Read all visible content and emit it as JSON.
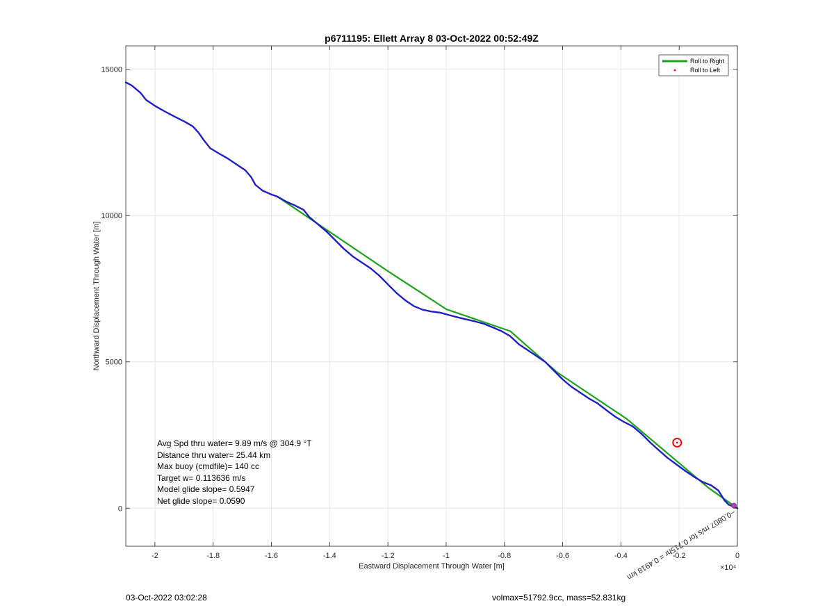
{
  "chart_data": {
    "type": "line",
    "title": "p6711195: Ellett Array 8 03-Oct-2022 00:52:49Z",
    "xlabel": "Eastward Displacement Through Water [m]",
    "ylabel": "Northward Displacement Through Water [m]",
    "x_exponent_label": "×10⁴",
    "xlim": [
      -21000,
      0
    ],
    "ylim": [
      -1300,
      15800
    ],
    "xticks": [
      -20000,
      -18000,
      -16000,
      -14000,
      -12000,
      -10000,
      -8000,
      -6000,
      -4000,
      -2000,
      0
    ],
    "xtick_labels": [
      "-2",
      "-1.8",
      "-1.6",
      "-1.4",
      "-1.2",
      "-1",
      "-0.8",
      "-0.6",
      "-0.4",
      "-0.2",
      "0"
    ],
    "yticks": [
      0,
      5000,
      10000,
      15000
    ],
    "ytick_labels": [
      "0",
      "5000",
      "10000",
      "15000"
    ],
    "grid": true,
    "legend_position": "top-right",
    "series": [
      {
        "name": "Roll to Right",
        "color": "#1aa31a",
        "style": "line",
        "points": [
          [
            -15800,
            10650
          ],
          [
            -12000,
            8100
          ],
          [
            -10000,
            6800
          ],
          [
            -7800,
            6050
          ],
          [
            -6200,
            4650
          ],
          [
            -3800,
            3050
          ],
          [
            -1000,
            700
          ],
          [
            0,
            0
          ]
        ]
      },
      {
        "name": "Roll to Left",
        "color": "#ff0000",
        "style": "point",
        "points": [
          [
            -2070,
            2240
          ]
        ]
      },
      {
        "color": "#1f1fc8",
        "style": "line",
        "points": [
          [
            -21000,
            14550
          ],
          [
            -20800,
            14450
          ],
          [
            -20500,
            14200
          ],
          [
            -20300,
            13950
          ],
          [
            -20000,
            13750
          ],
          [
            -19700,
            13580
          ],
          [
            -19300,
            13370
          ],
          [
            -19000,
            13220
          ],
          [
            -18700,
            13050
          ],
          [
            -18500,
            12830
          ],
          [
            -18300,
            12550
          ],
          [
            -18100,
            12300
          ],
          [
            -17800,
            12120
          ],
          [
            -17500,
            11950
          ],
          [
            -17200,
            11750
          ],
          [
            -16900,
            11550
          ],
          [
            -16700,
            11320
          ],
          [
            -16550,
            11050
          ],
          [
            -16300,
            10850
          ],
          [
            -16000,
            10720
          ],
          [
            -15800,
            10650
          ],
          [
            -15500,
            10480
          ],
          [
            -15200,
            10350
          ],
          [
            -14900,
            10200
          ],
          [
            -14700,
            9950
          ],
          [
            -14400,
            9700
          ],
          [
            -14100,
            9450
          ],
          [
            -13800,
            9150
          ],
          [
            -13500,
            8850
          ],
          [
            -13200,
            8600
          ],
          [
            -12900,
            8400
          ],
          [
            -12600,
            8200
          ],
          [
            -12300,
            7950
          ],
          [
            -12000,
            7650
          ],
          [
            -11700,
            7350
          ],
          [
            -11400,
            7100
          ],
          [
            -11100,
            6900
          ],
          [
            -10800,
            6780
          ],
          [
            -10500,
            6720
          ],
          [
            -10200,
            6680
          ],
          [
            -9900,
            6600
          ],
          [
            -9600,
            6520
          ],
          [
            -9300,
            6450
          ],
          [
            -9000,
            6380
          ],
          [
            -8700,
            6300
          ],
          [
            -8400,
            6180
          ],
          [
            -8100,
            6050
          ],
          [
            -7800,
            5880
          ],
          [
            -7500,
            5600
          ],
          [
            -7200,
            5400
          ],
          [
            -6900,
            5200
          ],
          [
            -6600,
            5000
          ],
          [
            -6300,
            4700
          ],
          [
            -6000,
            4400
          ],
          [
            -5700,
            4150
          ],
          [
            -5400,
            3950
          ],
          [
            -5100,
            3750
          ],
          [
            -4800,
            3580
          ],
          [
            -4500,
            3350
          ],
          [
            -4200,
            3130
          ],
          [
            -3900,
            2950
          ],
          [
            -3600,
            2800
          ],
          [
            -3300,
            2550
          ],
          [
            -3000,
            2250
          ],
          [
            -2700,
            1980
          ],
          [
            -2400,
            1720
          ],
          [
            -2100,
            1500
          ],
          [
            -1800,
            1280
          ],
          [
            -1500,
            1080
          ],
          [
            -1200,
            900
          ],
          [
            -900,
            780
          ],
          [
            -650,
            600
          ],
          [
            -450,
            280
          ],
          [
            -300,
            120
          ],
          [
            -150,
            60
          ],
          [
            0,
            0
          ]
        ]
      }
    ],
    "annotations": [
      {
        "text": "−0.0807 m/s for 0.715hr = 0.4918 km",
        "rotated_deg": 148
      }
    ],
    "circle_marker": {
      "x": -2070,
      "y": 2240,
      "color": "#ff0000"
    },
    "end_marker": {
      "x": -120,
      "y": 90,
      "color": "#b040c0"
    }
  },
  "stats": {
    "line1": "Avg Spd thru water=  9.89 m/s @ 304.9 °T",
    "line2": "Distance thru water= 25.44 km",
    "line3": "Max buoy (cmdfile)= 140 cc",
    "line4": "Target w= 0.113636 m/s",
    "line5": "Model glide slope= 0.5947",
    "line6": "Net glide slope= 0.0590"
  },
  "footer": {
    "timestamp": "03-Oct-2022 03:02:28",
    "volmax": "volmax=51792.9cc, mass=52.831kg"
  }
}
